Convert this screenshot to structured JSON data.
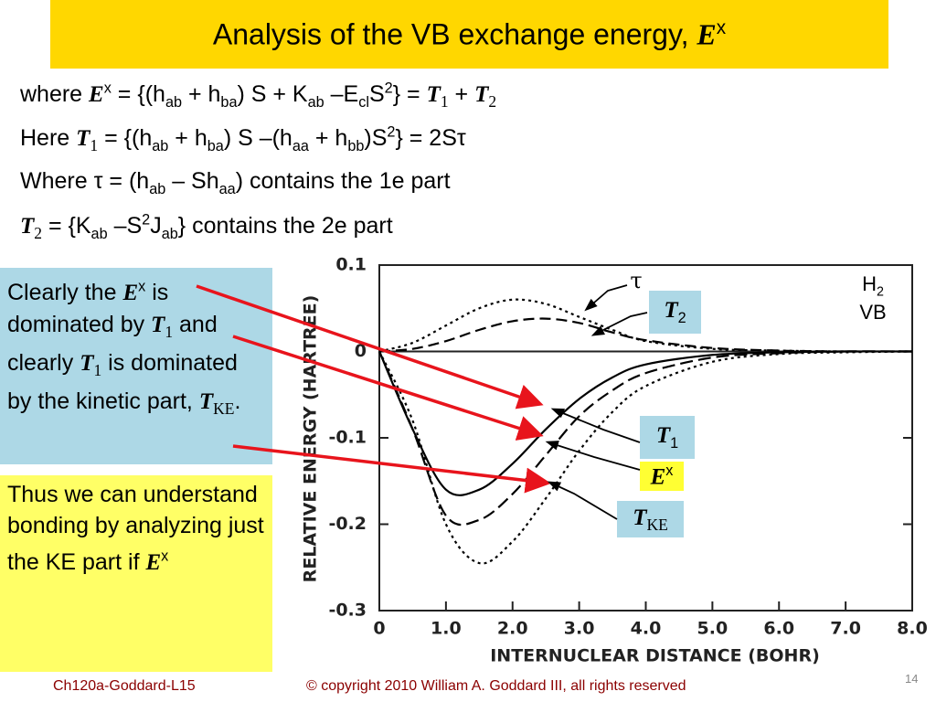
{
  "title": [
    "Analysis of the VB exchange energy, ",
    {
      "s": "E"
    },
    {
      "sup": "x"
    }
  ],
  "body": [
    [
      "where ",
      {
        "s": "E"
      },
      {
        "sup": "x"
      },
      " = {(h",
      {
        "sub": "ab"
      },
      " + h",
      {
        "sub": "ba"
      },
      ") S + K",
      {
        "sub": "ab"
      },
      " –E",
      {
        "sub": "cl"
      },
      "S",
      {
        "sup": "2"
      },
      "} = ",
      {
        "s": "T"
      },
      {
        "ssub": "1"
      },
      " + ",
      {
        "s": "T"
      },
      {
        "ssub": "2"
      }
    ],
    [
      "Here ",
      {
        "s": "T"
      },
      {
        "ssub": "1"
      },
      " = {(h",
      {
        "sub": "ab"
      },
      " + h",
      {
        "sub": "ba"
      },
      ") S –(h",
      {
        "sub": "aa"
      },
      " + h",
      {
        "sub": "bb"
      },
      ")S",
      {
        "sup": "2"
      },
      "} = 2Sτ"
    ],
    [
      "Where τ = (h",
      {
        "sub": "ab"
      },
      " – Sh",
      {
        "sub": "aa"
      },
      ") contains the 1e part"
    ],
    [
      {
        "s": "T"
      },
      {
        "ssub": "2"
      },
      " = {K",
      {
        "sub": "ab"
      },
      " –S",
      {
        "sup": "2"
      },
      "J",
      {
        "sub": "ab"
      },
      "} contains the 2e part"
    ]
  ],
  "blue_box": [
    "Clearly the ",
    {
      "s": "E"
    },
    {
      "sup": "x"
    },
    " is dominated by ",
    {
      "s": "T"
    },
    {
      "ssub": "1"
    },
    " and clearly ",
    {
      "s": "T"
    },
    {
      "ssub": "1"
    },
    " is dominated by the kinetic part, ",
    {
      "s": "T"
    },
    {
      "ssub": "KE"
    },
    "."
  ],
  "yellow_box": [
    "Thus we can understand bonding by analyzing just the KE part if ",
    {
      "s": "E"
    },
    {
      "sup": "x"
    }
  ],
  "plot_labels": {
    "t2": [
      {
        "s": "T"
      },
      {
        "sub": "2"
      }
    ],
    "t1": [
      {
        "s": "T"
      },
      {
        "sub": "1"
      }
    ],
    "ex": [
      {
        "s": "E"
      },
      {
        "sup": "x"
      }
    ],
    "tke": [
      {
        "s": "T"
      },
      {
        "ssub": "KE"
      }
    ],
    "tau": [
      "τ"
    ],
    "h2": [
      "H",
      {
        "sub": "2"
      }
    ],
    "vb": [
      "VB"
    ]
  },
  "footer": {
    "left": "Ch120a-Goddard-L15",
    "center": "© copyright 2010 William A. Goddard III, all rights reserved",
    "page": "14"
  },
  "chart_data": {
    "type": "line",
    "xlabel": "INTERNUCLEAR DISTANCE (BOHR)",
    "ylabel": "RELATIVE ENERGY (HARTREE)",
    "x": [
      0,
      0.5,
      1,
      1.5,
      2,
      2.5,
      3,
      3.5,
      4,
      5,
      6,
      7,
      8
    ],
    "series": [
      {
        "color": "#000000",
        "dash": "none",
        "values": [
          0,
          -0.09,
          -0.16,
          -0.16,
          -0.13,
          -0.09,
          -0.055,
          -0.03,
          -0.015,
          -0.004,
          -0.001,
          0,
          0
        ]
      },
      {
        "color": "#000000",
        "dash": "14,6",
        "values": [
          0,
          -0.09,
          -0.19,
          -0.195,
          -0.165,
          -0.12,
          -0.075,
          -0.045,
          -0.025,
          -0.007,
          -0.002,
          0,
          0
        ]
      },
      {
        "color": "#000000",
        "dash": "3,4",
        "values": [
          0,
          -0.08,
          -0.2,
          -0.245,
          -0.22,
          -0.17,
          -0.115,
          -0.07,
          -0.04,
          -0.012,
          -0.003,
          -0.001,
          0
        ]
      },
      {
        "color": "#000000",
        "dash": "3,4",
        "values": [
          0,
          0.01,
          0.03,
          0.05,
          0.06,
          0.055,
          0.04,
          0.025,
          0.012,
          0.003,
          0.001,
          0,
          0
        ]
      },
      {
        "color": "#000000",
        "dash": "12,6",
        "values": [
          0,
          0.003,
          0.012,
          0.025,
          0.035,
          0.038,
          0.033,
          0.022,
          0.013,
          0.004,
          0.001,
          0,
          0
        ]
      }
    ],
    "xlim": [
      0,
      8
    ],
    "ylim": [
      -0.3,
      0.1
    ],
    "xticks": [
      0,
      {
        "value": 1,
        "label": "1.0"
      },
      {
        "value": 2,
        "label": "2.0"
      },
      {
        "value": 3,
        "label": "3.0"
      },
      {
        "value": 4,
        "label": "4.0"
      },
      {
        "value": 5,
        "label": "5.0"
      },
      {
        "value": 6,
        "label": "6.0"
      },
      {
        "value": 7,
        "label": "7.0"
      },
      {
        "value": 8,
        "label": "8.0"
      }
    ],
    "yticks": [
      -0.3,
      -0.2,
      -0.1,
      0,
      0.1
    ]
  }
}
